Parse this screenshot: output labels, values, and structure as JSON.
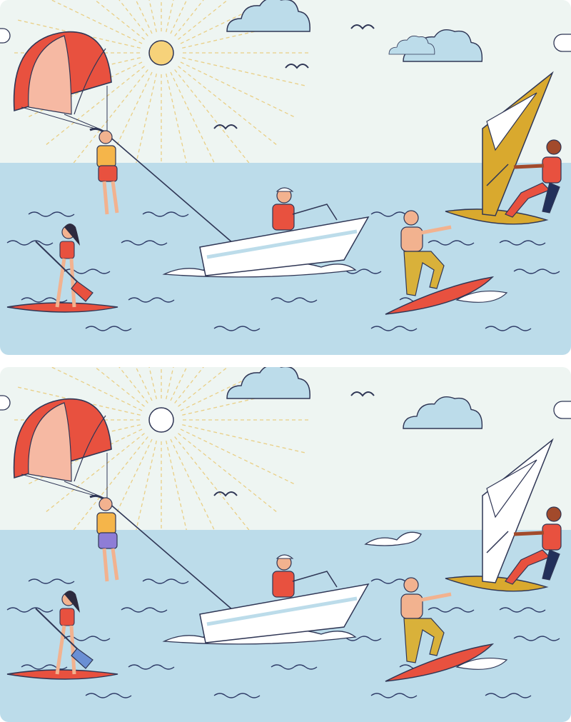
{
  "puzzle": {
    "panels": [
      {
        "id": "top",
        "sun": "#f6d27a",
        "cloud_count": 3,
        "bird_count": 3,
        "woman_shorts": "#e8513f",
        "paddle_blade": "#e8513f",
        "boat_sail_top": "#d9a92e"
      },
      {
        "id": "bottom",
        "sun": "#ffffff",
        "cloud_count": 2,
        "bird_count": 2,
        "woman_shorts": "#8e7dd6",
        "paddle_blade": "#6a8fd4",
        "boat_sail_top": "#ffffff"
      }
    ],
    "colors": {
      "sky": "#eef5f2",
      "sea": "#bcdcea",
      "wave": "#2d3a66",
      "outline": "#2f3655",
      "red": "#e8513f",
      "pink": "#f6b9a3",
      "yellow": "#d9a92e",
      "cloud": "#bcdcea",
      "skin": "#f2b28f",
      "dark_skin": "#a24a2b"
    }
  }
}
